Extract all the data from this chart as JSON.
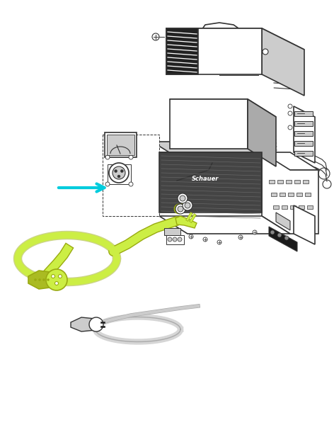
{
  "bg_color": "#ffffff",
  "line_color": "#333333",
  "dark_color": "#1a1a1a",
  "gray_color": "#888888",
  "light_gray": "#cccccc",
  "med_gray": "#aaaaaa",
  "lime_color": "#ccee44",
  "lime_dark": "#aabb22",
  "lime_outline": "#99aa11",
  "cyan_arrow": "#00ccdd",
  "panel_dark": "#444444",
  "panel_med": "#666666",
  "stripe_dark": "#222222",
  "white": "#ffffff",
  "figsize": [
    4.72,
    6.0
  ],
  "dpi": 100
}
